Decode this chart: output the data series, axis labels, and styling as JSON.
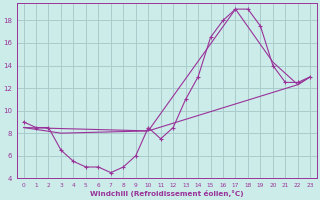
{
  "xlabel": "Windchill (Refroidissement éolien,°C)",
  "bg_color": "#ccecea",
  "grid_color": "#aacccc",
  "line_color": "#993399",
  "xlim": [
    -0.5,
    23.5
  ],
  "ylim": [
    4,
    19.5
  ],
  "yticks": [
    4,
    6,
    8,
    10,
    12,
    14,
    16,
    18
  ],
  "xticks": [
    0,
    1,
    2,
    3,
    4,
    5,
    6,
    7,
    8,
    9,
    10,
    11,
    12,
    13,
    14,
    15,
    16,
    17,
    18,
    19,
    20,
    21,
    22,
    23
  ],
  "line1_x": [
    0,
    1,
    2,
    3,
    4,
    5,
    6,
    7,
    8,
    9,
    10,
    11,
    12,
    13,
    14,
    15,
    16,
    17,
    18,
    19,
    20,
    21,
    22,
    23
  ],
  "line1_y": [
    9.0,
    8.5,
    8.5,
    6.5,
    5.5,
    5.0,
    5.0,
    4.5,
    5.0,
    6.0,
    8.5,
    7.5,
    8.5,
    11.0,
    13.0,
    16.5,
    18.0,
    19.0,
    19.0,
    17.5,
    14.0,
    12.5,
    12.5,
    13.0
  ],
  "line2_x": [
    0,
    3,
    10,
    17,
    20,
    22,
    23
  ],
  "line2_y": [
    8.5,
    8.0,
    8.2,
    19.0,
    14.3,
    12.3,
    13.0
  ],
  "line3_x": [
    0,
    10,
    22,
    23
  ],
  "line3_y": [
    8.5,
    8.2,
    12.3,
    13.0
  ]
}
